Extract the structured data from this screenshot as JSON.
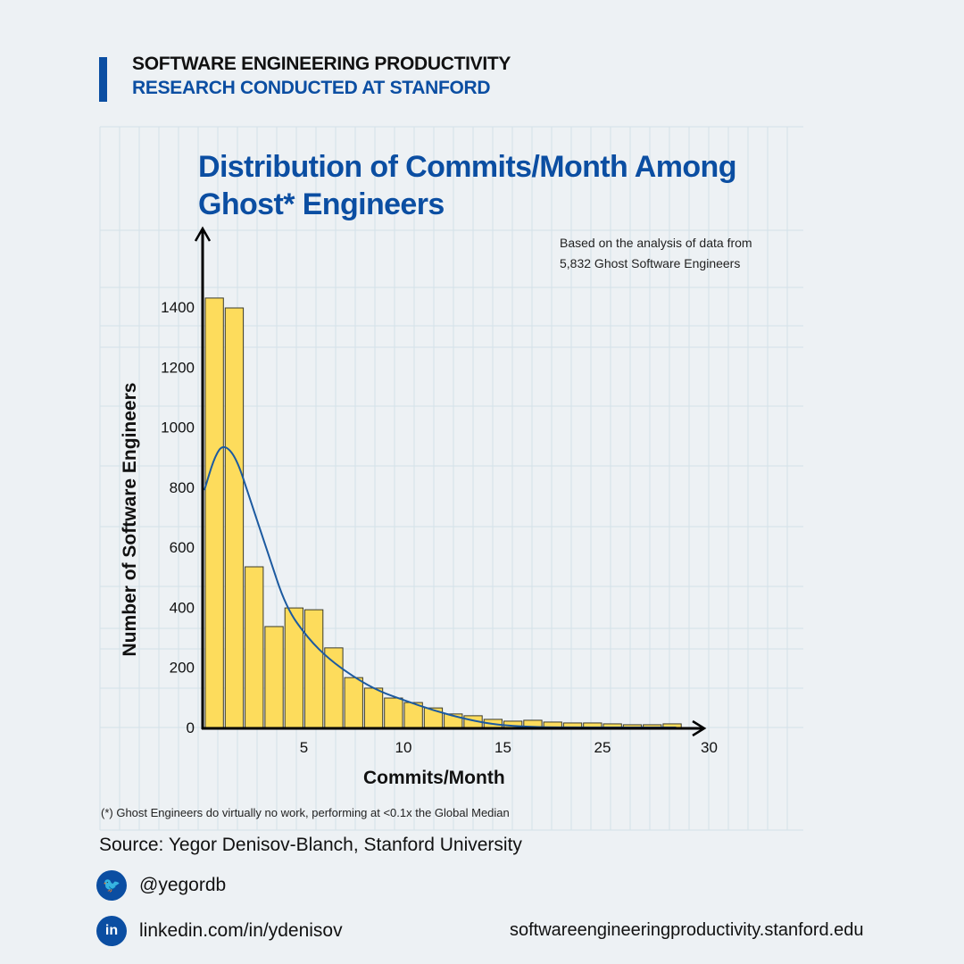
{
  "header": {
    "line1": "SOFTWARE ENGINEERING PRODUCTIVITY",
    "line2": "RESEARCH CONDUCTED AT STANFORD",
    "accent_color": "#0b4ea2"
  },
  "chart_data": {
    "type": "bar",
    "title": "Distribution of Commits/Month Among Ghost* Engineers",
    "annotation": [
      "Based on the analysis of data from",
      "5,832 Ghost Software Engineers"
    ],
    "xlabel": "Commits/Month",
    "ylabel": "Number of Software Engineers",
    "ylim": [
      0,
      1400
    ],
    "yticks": [
      0,
      200,
      400,
      600,
      800,
      1000,
      1200,
      1400
    ],
    "xticks": [
      "5",
      "10",
      "15",
      "25",
      "30"
    ],
    "bar_color": "#fddc5c",
    "curve_color": "#1c5aa0",
    "values": [
      1430,
      1397,
      535,
      336,
      398,
      392,
      265,
      166,
      131,
      98,
      83,
      65,
      45,
      39,
      27,
      21,
      24,
      18,
      15,
      15,
      12,
      9,
      9,
      12
    ],
    "curve": [
      [
        0,
        790
      ],
      [
        0.5,
        900
      ],
      [
        0.95,
        945
      ],
      [
        1.6,
        900
      ],
      [
        2.3,
        758
      ],
      [
        3.2,
        580
      ],
      [
        4.1,
        400
      ],
      [
        5.2,
        297
      ],
      [
        6.3,
        225
      ],
      [
        7.6,
        164
      ],
      [
        8.8,
        120
      ],
      [
        10.1,
        89
      ],
      [
        11.5,
        57
      ],
      [
        13,
        30
      ],
      [
        14.2,
        14
      ],
      [
        15.2,
        6
      ],
      [
        16.5,
        2
      ],
      [
        17.5,
        0
      ],
      [
        23.7,
        0
      ]
    ],
    "grid": true,
    "footnote": "(*) Ghost Engineers do virtually no work, performing at <0.1x the Global Median"
  },
  "footer": {
    "source": "Source: Yegor Denisov-Blanch, Stanford University",
    "twitter": "@yegordb",
    "linkedin": "linkedin.com/in/ydenisov",
    "website": "softwareengineeringproductivity.stanford.edu"
  }
}
